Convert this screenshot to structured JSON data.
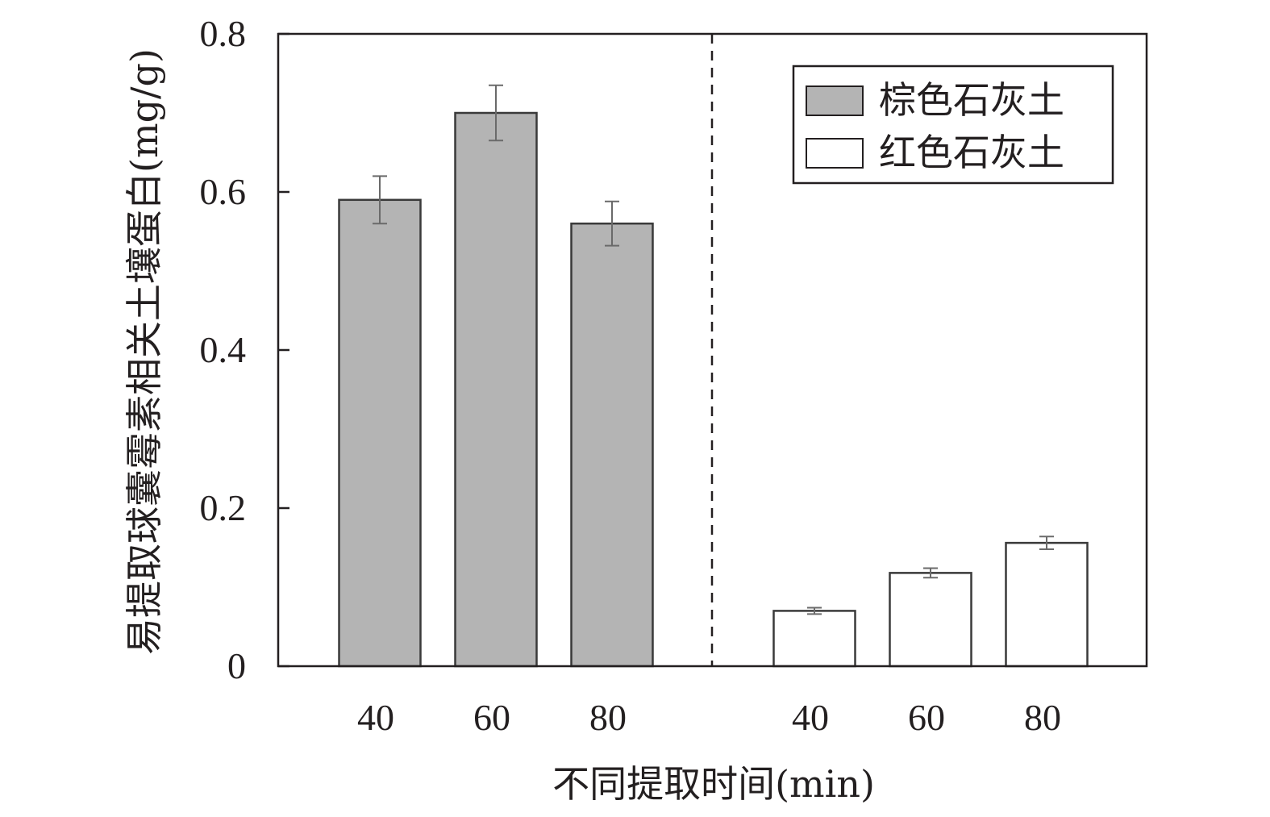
{
  "chart_data": {
    "type": "bar",
    "ylabel": "易提取球囊霉素相关土壤蛋白(mg/g)",
    "xlabel": "不同提取时间(min)",
    "ylim": [
      0,
      0.8
    ],
    "yticks": [
      {
        "value": 0,
        "label": "0"
      },
      {
        "value": 0.2,
        "label": "0.2"
      },
      {
        "value": 0.4,
        "label": "0.4"
      },
      {
        "value": 0.6,
        "label": "0.6"
      },
      {
        "value": 0.8,
        "label": "0.8"
      }
    ],
    "legend_position": "top-right",
    "grid": false,
    "groups_separated_by_dashed_line": true,
    "series": [
      {
        "name": "棕色石灰土",
        "color": "#b4b4b4",
        "categories": [
          "40",
          "60",
          "80"
        ],
        "values": [
          0.59,
          0.7,
          0.56
        ],
        "errors": [
          0.03,
          0.035,
          0.028
        ]
      },
      {
        "name": "红色石灰土",
        "color": "#ffffff",
        "categories": [
          "40",
          "60",
          "80"
        ],
        "values": [
          0.07,
          0.118,
          0.156
        ],
        "errors": [
          0.004,
          0.006,
          0.008
        ]
      }
    ]
  }
}
